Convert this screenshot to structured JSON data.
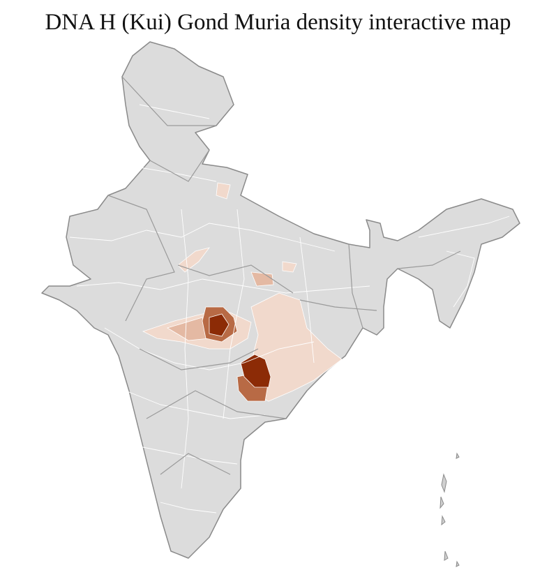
{
  "header": {
    "title": "DNA H (Kui) Gond Muria density interactive map"
  }
}
